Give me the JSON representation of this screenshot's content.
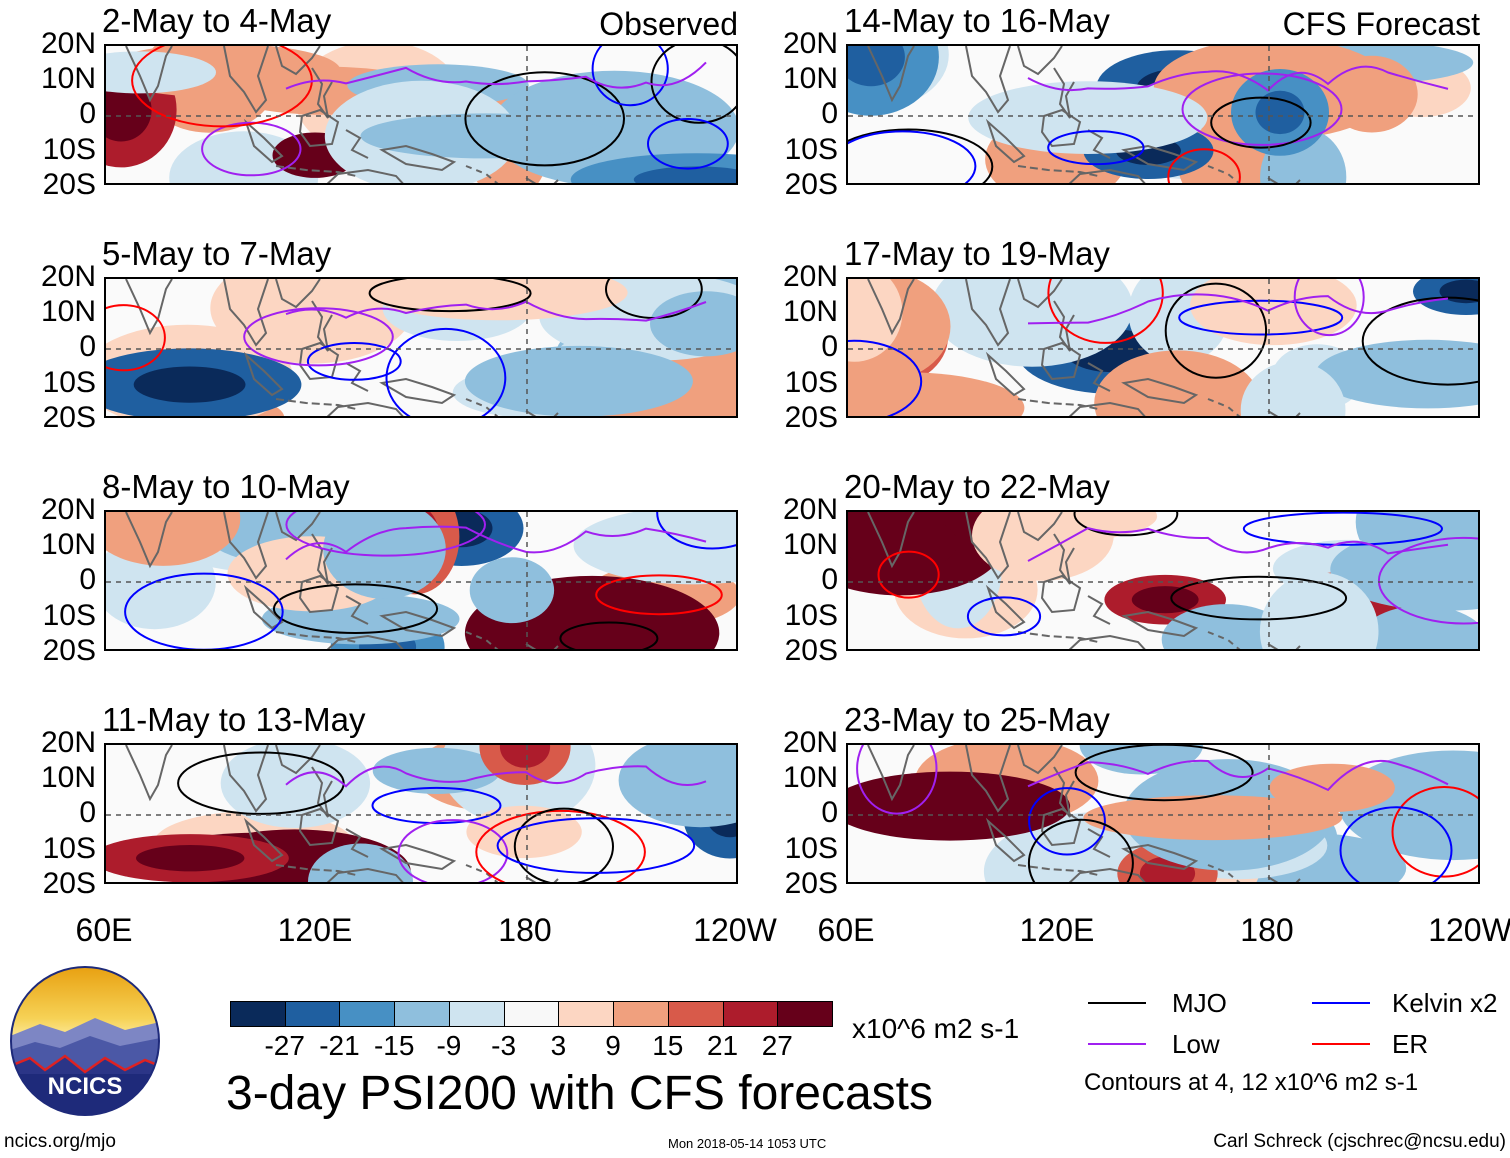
{
  "panels": [
    {
      "title": "2-May to 4-May",
      "tag": "Observed",
      "seed": 3
    },
    {
      "title": "14-May to 16-May",
      "tag": "CFS Forecast",
      "seed": 11
    },
    {
      "title": "5-May to 7-May",
      "tag": "",
      "seed": 5
    },
    {
      "title": "17-May to 19-May",
      "tag": "",
      "seed": 13
    },
    {
      "title": "8-May to 10-May",
      "tag": "",
      "seed": 7
    },
    {
      "title": "20-May to 22-May",
      "tag": "",
      "seed": 17
    },
    {
      "title": "11-May to 13-May",
      "tag": "",
      "seed": 9
    },
    {
      "title": "23-May to 25-May",
      "tag": "",
      "seed": 19
    }
  ],
  "lat_labels": [
    "20N",
    "10N",
    "0",
    "10S",
    "20S"
  ],
  "lon_labels": [
    "60E",
    "120E",
    "180",
    "120W"
  ],
  "colorbar": {
    "colors": [
      "#0a2a5a",
      "#1f5fa0",
      "#4790c4",
      "#8fbfdd",
      "#cfe4f0",
      "#f8f8f8",
      "#fcd6c2",
      "#f0a07e",
      "#d85a4a",
      "#ad1c2c",
      "#66001a"
    ],
    "labels": [
      "-27",
      "-21",
      "-15",
      "-9",
      "-3",
      "3",
      "9",
      "15",
      "21",
      "27"
    ],
    "units": "x10^6 m2 s-1"
  },
  "legend": {
    "items": [
      {
        "label": "MJO",
        "color": "#000000"
      },
      {
        "label": "Kelvin x2",
        "color": "#0000ff"
      },
      {
        "label": "Low",
        "color": "#a020f0"
      },
      {
        "label": "ER",
        "color": "#ff0000"
      }
    ],
    "contours_note": "Contours at 4, 12 x10^6 m2 s-1"
  },
  "main_title": "3-day PSI200 with CFS forecasts",
  "logo_text": "NCICS",
  "footer": {
    "site": "ncics.org/mjo",
    "timestamp": "Mon 2018-05-14 1053 UTC",
    "author": "Carl Schreck (cjschrec@ncsu.edu)"
  }
}
